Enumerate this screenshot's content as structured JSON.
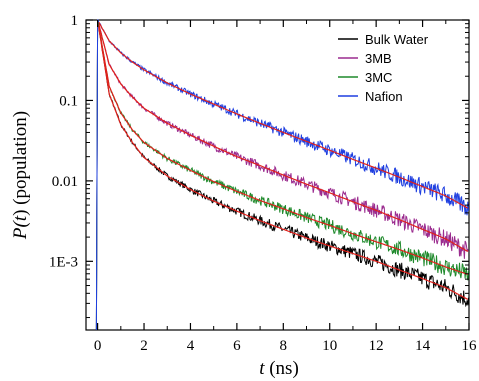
{
  "chart_data": {
    "type": "line",
    "title": "",
    "xlabel": {
      "italic": "t",
      "rest": " (ns)"
    },
    "ylabel": {
      "prefix": "P(",
      "italic": "t",
      "suffix": ") (population)"
    },
    "xlim": [
      -0.5,
      16
    ],
    "ylim": [
      0.00014,
      1
    ],
    "yscale": "log",
    "x_ticks": [
      0,
      2,
      4,
      6,
      8,
      10,
      12,
      14,
      16
    ],
    "x_tick_labels": [
      "0",
      "2",
      "4",
      "6",
      "8",
      "10",
      "12",
      "14",
      "16"
    ],
    "y_ticks": [
      1,
      0.1,
      0.01,
      0.001
    ],
    "y_tick_labels": [
      "1",
      "0.1",
      "0.01",
      "1E-3"
    ],
    "grid": false,
    "legend_position": "top-right",
    "series": [
      {
        "name": "Bulk Water",
        "color": "#000000",
        "x": [
          0,
          0.5,
          1,
          1.5,
          2,
          3,
          4,
          5,
          6,
          7,
          8,
          9,
          10,
          11,
          12,
          13,
          14,
          15,
          16
        ],
        "y": [
          1,
          0.12,
          0.05,
          0.03,
          0.0195,
          0.0115,
          0.0078,
          0.0056,
          0.0042,
          0.0032,
          0.0025,
          0.00195,
          0.00155,
          0.00125,
          0.001,
          0.00078,
          0.00061,
          0.00047,
          0.00033
        ]
      },
      {
        "name": "3MB",
        "color": "#9b2c8f",
        "x": [
          0,
          0.5,
          1,
          1.5,
          2,
          3,
          4,
          5,
          6,
          7,
          8,
          9,
          10,
          11,
          12,
          13,
          14,
          15,
          16
        ],
        "y": [
          1,
          0.28,
          0.16,
          0.11,
          0.08,
          0.052,
          0.037,
          0.027,
          0.02,
          0.0155,
          0.0118,
          0.0091,
          0.0071,
          0.0055,
          0.0043,
          0.0033,
          0.0025,
          0.0019,
          0.0013
        ]
      },
      {
        "name": "3MC",
        "color": "#1f8a2c",
        "x": [
          0,
          0.5,
          1,
          1.5,
          2,
          3,
          4,
          5,
          6,
          7,
          8,
          9,
          10,
          11,
          12,
          13,
          14,
          15,
          16
        ],
        "y": [
          1,
          0.15,
          0.07,
          0.043,
          0.03,
          0.019,
          0.0135,
          0.0098,
          0.0074,
          0.0057,
          0.0045,
          0.0035,
          0.0028,
          0.0022,
          0.00175,
          0.0014,
          0.0011,
          0.00085,
          0.00068
        ]
      },
      {
        "name": "Nafion",
        "color": "#1f3fe0",
        "x": [
          0,
          0.5,
          1,
          1.5,
          2,
          3,
          4,
          5,
          6,
          7,
          8,
          9,
          10,
          11,
          12,
          13,
          14,
          15,
          16
        ],
        "y": [
          1,
          0.55,
          0.39,
          0.3,
          0.24,
          0.165,
          0.12,
          0.09,
          0.068,
          0.052,
          0.04,
          0.031,
          0.024,
          0.0185,
          0.0144,
          0.0111,
          0.0085,
          0.0065,
          0.0045
        ]
      }
    ],
    "fit_color": "#e0201b"
  }
}
